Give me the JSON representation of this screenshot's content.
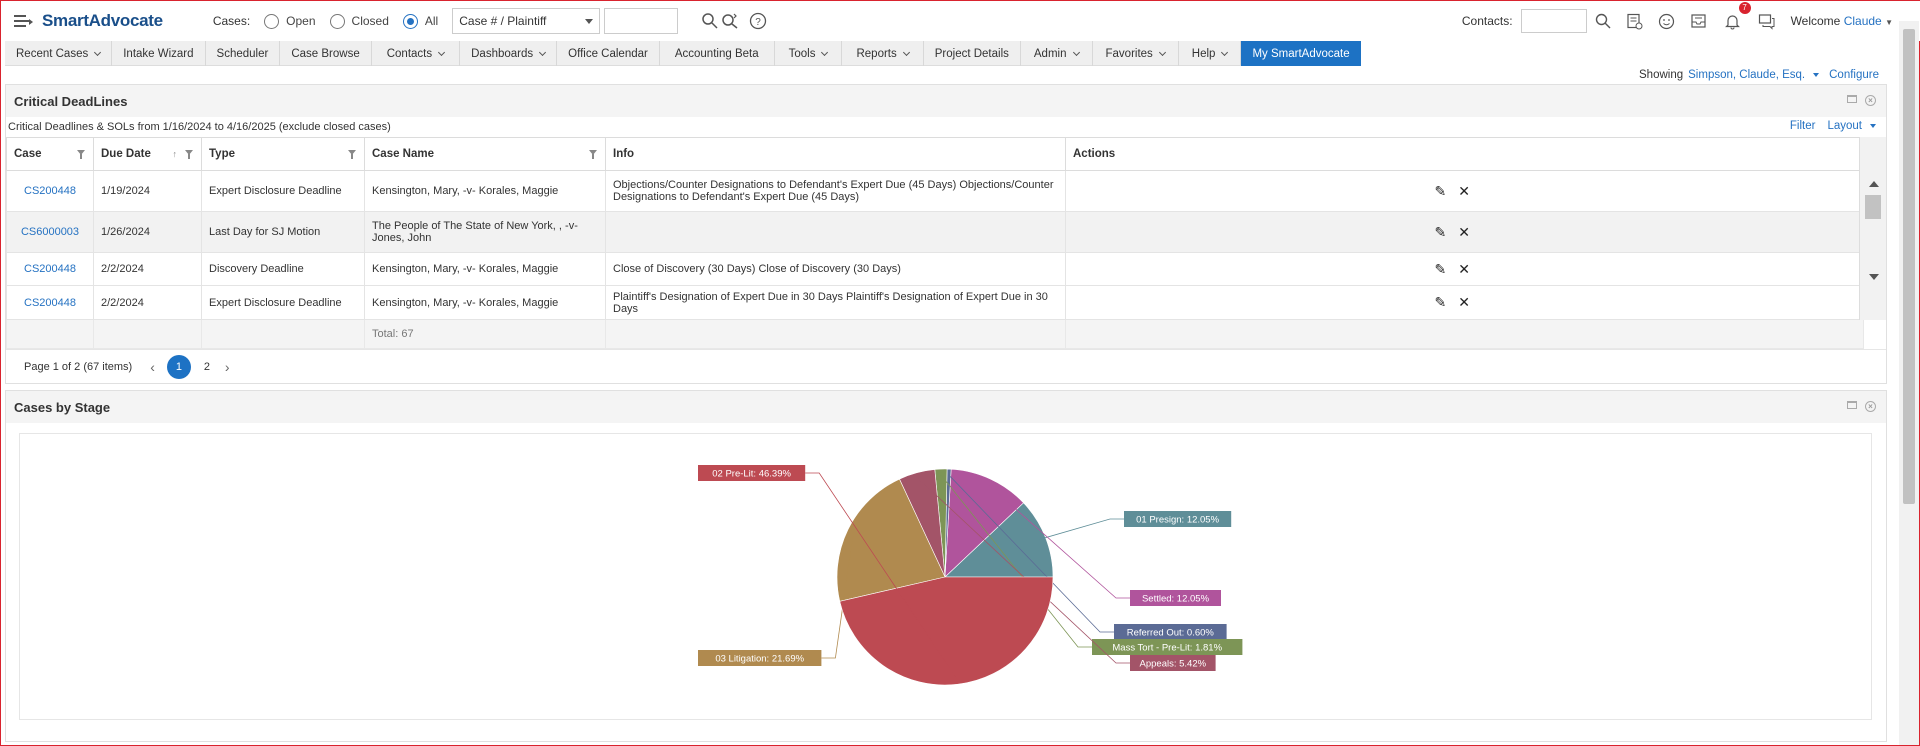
{
  "header": {
    "logo": "SmartAdvocate",
    "cases_label": "Cases:",
    "radio_open": "Open",
    "radio_closed": "Closed",
    "radio_all": "All",
    "selected_radio": "All",
    "search_type": "Case # / Plaintiff",
    "contacts_label": "Contacts:",
    "notifications_count": "7",
    "welcome_prefix": "Welcome",
    "welcome_name": "Claude"
  },
  "nav": [
    {
      "label": "Recent Cases",
      "dropdown": true
    },
    {
      "label": "Intake Wizard",
      "dropdown": false
    },
    {
      "label": "Scheduler",
      "dropdown": false
    },
    {
      "label": "Case Browse",
      "dropdown": false
    },
    {
      "label": "Contacts",
      "dropdown": true
    },
    {
      "label": "Dashboards",
      "dropdown": true
    },
    {
      "label": "Office Calendar",
      "dropdown": false
    },
    {
      "label": "Accounting Beta",
      "dropdown": false
    },
    {
      "label": "Tools",
      "dropdown": true
    },
    {
      "label": "Reports",
      "dropdown": true
    },
    {
      "label": "Project Details",
      "dropdown": false
    },
    {
      "label": "Admin",
      "dropdown": true
    },
    {
      "label": "Favorites",
      "dropdown": true
    },
    {
      "label": "Help",
      "dropdown": true
    },
    {
      "label": "My SmartAdvocate",
      "dropdown": false,
      "active": true
    }
  ],
  "showing": {
    "label": "Showing",
    "user": "Simpson, Claude, Esq.",
    "configure": "Configure"
  },
  "deadlines": {
    "title": "Critical DeadLines",
    "subtitle": "Critical Deadlines & SOLs from 1/16/2024 to 4/16/2025 (exclude closed cases)",
    "filter_link": "Filter",
    "layout_link": "Layout",
    "columns": [
      "Case",
      "Due Date",
      "Type",
      "Case Name",
      "Info",
      "Actions"
    ],
    "rows": [
      {
        "case": "CS200448",
        "due": "1/19/2024",
        "type": "Expert Disclosure Deadline",
        "name": "Kensington, Mary, -v- Korales, Maggie",
        "info": "Objections/Counter Designations to Defendant's Expert Due (45 Days) Objections/Counter Designations to Defendant's Expert Due (45 Days)"
      },
      {
        "case": "CS6000003",
        "due": "1/26/2024",
        "type": "Last Day for SJ Motion",
        "name": "The People of The State of New York, , -v- Jones, John",
        "info": ""
      },
      {
        "case": "CS200448",
        "due": "2/2/2024",
        "type": "Discovery Deadline",
        "name": "Kensington, Mary, -v- Korales, Maggie",
        "info": "Close of Discovery (30 Days) Close of Discovery (30 Days)"
      },
      {
        "case": "CS200448",
        "due": "2/2/2024",
        "type": "Expert Disclosure Deadline",
        "name": "Kensington, Mary, -v- Korales, Maggie",
        "info": "Plaintiff's Designation of Expert Due in 30 Days Plaintiff's Designation of Expert Due in 30 Days"
      }
    ],
    "total": "Total: 67",
    "pager_text": "Page 1 of 2 (67 items)",
    "pages": [
      "1",
      "2"
    ],
    "current_page": "1"
  },
  "stage_panel": {
    "title": "Cases by Stage"
  },
  "chart_data": {
    "type": "pie",
    "title": "",
    "slices": [
      {
        "label": "01 Presign",
        "value": 12.05,
        "display": "01 Presign: 12.05%",
        "color": "#5f8e98"
      },
      {
        "label": "Settled",
        "value": 12.05,
        "display": "Settled: 12.05%",
        "color": "#b0549c"
      },
      {
        "label": "Referred Out",
        "value": 0.6,
        "display": "Referred Out: 0.60%",
        "color": "#5b6b95"
      },
      {
        "label": "Mass Tort - Pre-Lit",
        "value": 1.81,
        "display": "Mass Tort - Pre-Lit: 1.81%",
        "color": "#7d9556"
      },
      {
        "label": "Appeals",
        "value": 5.42,
        "display": "Appeals: 5.42%",
        "color": "#a35468"
      },
      {
        "label": "03 Litigation",
        "value": 21.69,
        "display": "03 Litigation: 21.69%",
        "color": "#b08a4f"
      },
      {
        "label": "02 Pre-Lit",
        "value": 46.39,
        "display": "02 Pre-Lit: 46.39%",
        "color": "#bd4a52"
      }
    ]
  }
}
